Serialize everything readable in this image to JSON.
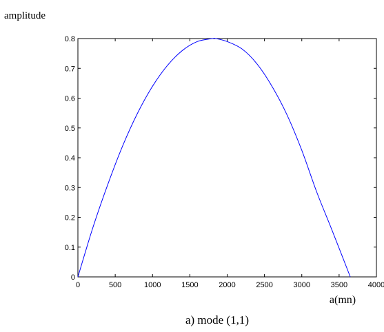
{
  "chart_data": {
    "type": "line",
    "ylabel": "amplitude",
    "xlabel": "a(mn)",
    "caption": "a) mode (1,1)",
    "xlim": [
      0,
      4000
    ],
    "ylim": [
      0,
      0.8
    ],
    "x_ticks": [
      0,
      500,
      1000,
      1500,
      2000,
      2500,
      3000,
      3500,
      4000
    ],
    "y_ticks": [
      0,
      0.1,
      0.2,
      0.3,
      0.4,
      0.5,
      0.6,
      0.7,
      0.8
    ],
    "x_tick_labels": [
      "0",
      "500",
      "1000",
      "1500",
      "2000",
      "2500",
      "3000",
      "3500",
      "4000"
    ],
    "y_tick_labels": [
      "0",
      "0.1",
      "0.2",
      "0.3",
      "0.4",
      "0.5",
      "0.6",
      "0.7",
      "0.8"
    ],
    "grid": false,
    "line_color": "#0000ff",
    "series": [
      {
        "x": [
          0,
          200,
          400,
          600,
          800,
          1000,
          1200,
          1400,
          1600,
          1800,
          1850,
          2000,
          2200,
          2400,
          2600,
          2800,
          3000,
          3200,
          3400,
          3650
        ],
        "y": [
          0,
          0.165,
          0.31,
          0.44,
          0.55,
          0.64,
          0.71,
          0.76,
          0.79,
          0.8,
          0.8,
          0.79,
          0.765,
          0.715,
          0.64,
          0.545,
          0.425,
          0.285,
          0.16,
          0
        ]
      }
    ]
  }
}
